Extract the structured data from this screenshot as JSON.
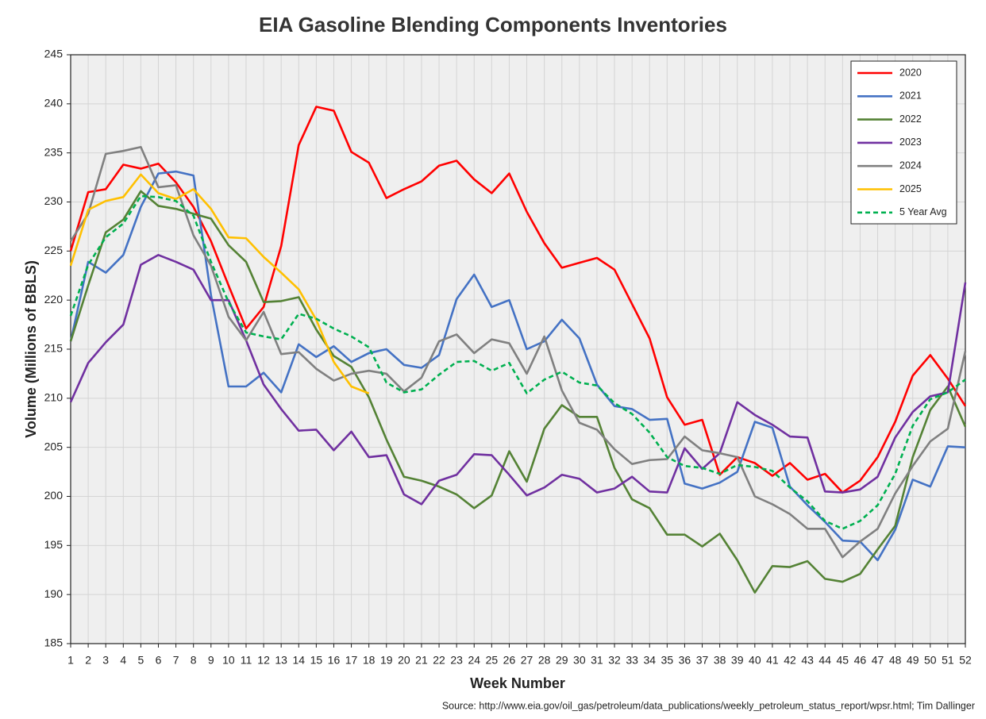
{
  "chart_data": {
    "type": "line",
    "title": "EIA Gasoline Blending Components Inventories",
    "x_label": "Week Number",
    "y_label": "Volume (Millions of BBLS)",
    "source": "Source: http://www.eia.gov/oil_gas/petroleum/data_publications/weekly_petroleum_status_report/wpsr.html; Tim Dallinger",
    "x": [
      1,
      2,
      3,
      4,
      5,
      6,
      7,
      8,
      9,
      10,
      11,
      12,
      13,
      14,
      15,
      16,
      17,
      18,
      19,
      20,
      21,
      22,
      23,
      24,
      25,
      26,
      27,
      28,
      29,
      30,
      31,
      32,
      33,
      34,
      35,
      36,
      37,
      38,
      39,
      40,
      41,
      42,
      43,
      44,
      45,
      46,
      47,
      48,
      49,
      50,
      51,
      52
    ],
    "xlim": [
      1,
      52
    ],
    "xticks": [
      1,
      2,
      3,
      4,
      5,
      6,
      7,
      8,
      9,
      10,
      11,
      12,
      13,
      14,
      15,
      16,
      17,
      18,
      19,
      20,
      21,
      22,
      23,
      24,
      25,
      26,
      27,
      28,
      29,
      30,
      31,
      32,
      33,
      34,
      35,
      36,
      37,
      38,
      39,
      40,
      41,
      42,
      43,
      44,
      45,
      46,
      47,
      48,
      49,
      50,
      51,
      52
    ],
    "ylim": [
      185,
      245
    ],
    "yticks": [
      185,
      190,
      195,
      200,
      205,
      210,
      215,
      220,
      225,
      230,
      235,
      240,
      245
    ],
    "grid": true,
    "legend": "upper right",
    "series": [
      {
        "name": "2020",
        "color": "#ff0000",
        "values": [
          225,
          231,
          231.3,
          233.8,
          233.4,
          233.9,
          232,
          229.5,
          226,
          221.5,
          217.1,
          219.3,
          225.5,
          235.8,
          239.7,
          239.3,
          235.1,
          234,
          230.4,
          231.3,
          232.1,
          233.7,
          234.2,
          232.3,
          230.9,
          232.9,
          229,
          225.8,
          223.3,
          223.8,
          224.3,
          223.1,
          219.6,
          216.1,
          210.1,
          207.3,
          207.8,
          202.2,
          204,
          203.4,
          202.1,
          203.4,
          201.7,
          202.3,
          200.4,
          201.6,
          204,
          207.6,
          212.3,
          214.4,
          212,
          209.2
        ]
      },
      {
        "name": "2021",
        "color": "#4472c4",
        "values": [
          215.8,
          223.9,
          222.8,
          224.6,
          229.5,
          232.9,
          233.1,
          232.7,
          220.5,
          211.2,
          211.2,
          212.6,
          210.6,
          215.5,
          214.2,
          215.3,
          213.7,
          214.6,
          215,
          213.4,
          213.1,
          214.4,
          220.1,
          222.6,
          219.3,
          220,
          215,
          215.8,
          218,
          216.1,
          211.4,
          209.2,
          208.9,
          207.8,
          207.9,
          201.3,
          200.8,
          201.4,
          202.5,
          207.6,
          207,
          201,
          199.1,
          197.4,
          195.5,
          195.4,
          193.5,
          196.6,
          201.7,
          201,
          205.1,
          205
        ]
      },
      {
        "name": "2022",
        "color": "#548235",
        "values": [
          215.8,
          221.5,
          226.9,
          228.2,
          231.1,
          229.6,
          229.3,
          228.8,
          228.3,
          225.6,
          223.9,
          219.8,
          219.9,
          220.3,
          217,
          214.3,
          213.2,
          210.1,
          205.8,
          202,
          201.6,
          201,
          200.2,
          198.8,
          200.1,
          204.6,
          201.5,
          206.9,
          209.3,
          208.1,
          208.1,
          202.9,
          199.7,
          198.8,
          196.1,
          196.1,
          194.9,
          196.2,
          193.5,
          190.2,
          192.9,
          192.8,
          193.4,
          191.6,
          191.3,
          192.1,
          194.6,
          197,
          204,
          208.8,
          211.2,
          207.1
        ]
      },
      {
        "name": "2023",
        "color": "#7030a0",
        "values": [
          209.6,
          213.6,
          215.7,
          217.5,
          223.6,
          224.6,
          223.9,
          223.1,
          220,
          220,
          215.9,
          211.4,
          208.9,
          206.7,
          206.8,
          204.7,
          206.6,
          204,
          204.2,
          200.2,
          199.2,
          201.6,
          202.2,
          204.3,
          204.2,
          202.2,
          200.1,
          200.9,
          202.2,
          201.8,
          200.4,
          200.8,
          202,
          200.5,
          200.4,
          204.9,
          202.8,
          204.4,
          209.6,
          208.3,
          207.3,
          206.1,
          206,
          200.5,
          200.4,
          200.7,
          202,
          206,
          208.6,
          210.2,
          210.6,
          221.8
        ]
      },
      {
        "name": "2024",
        "color": "#808080",
        "values": [
          226,
          228.8,
          234.9,
          235.2,
          235.6,
          231.5,
          231.7,
          226.6,
          223.5,
          218.3,
          215.9,
          218.8,
          214.5,
          214.7,
          213,
          211.8,
          212.5,
          212.8,
          212.5,
          210.7,
          212.1,
          215.8,
          216.5,
          214.6,
          216,
          215.6,
          212.5,
          216.3,
          210.8,
          207.5,
          206.8,
          204.8,
          203.3,
          203.7,
          203.8,
          206.1,
          204.7,
          204.4,
          204,
          200,
          199.2,
          198.2,
          196.7,
          196.7,
          193.8,
          195.4,
          196.7,
          200.3,
          203.1,
          205.6,
          206.9,
          214.8
        ]
      },
      {
        "name": "2025",
        "color": "#ffc000",
        "values": [
          223.5,
          229.2,
          230.1,
          230.5,
          232.8,
          230.9,
          230.3,
          231.3,
          229.3,
          226.4,
          226.3,
          224.4,
          222.8,
          221.1,
          218,
          213.7,
          211.2,
          210.5,
          null,
          null,
          null,
          null,
          null,
          null,
          null,
          null,
          null,
          null,
          null,
          null,
          null,
          null,
          null,
          null,
          null,
          null,
          null,
          null,
          null,
          null,
          null,
          null,
          null,
          null,
          null,
          null,
          null,
          null,
          null,
          null,
          null,
          null
        ]
      },
      {
        "name": "5 Year Avg",
        "color": "#00b050",
        "style": "dashed",
        "values": [
          218.4,
          223.6,
          226.4,
          227.8,
          230.6,
          230.5,
          230.1,
          228.6,
          223.9,
          219.8,
          216.7,
          216.3,
          216,
          218.6,
          218.1,
          217.1,
          216.3,
          215.2,
          211.6,
          210.6,
          210.9,
          212.4,
          213.7,
          213.8,
          212.8,
          213.6,
          210.5,
          211.9,
          212.7,
          211.6,
          211.3,
          209.5,
          208.4,
          206.5,
          204,
          203.1,
          202.9,
          202.3,
          203.2,
          203,
          202.6,
          200.9,
          199.5,
          197.5,
          196.7,
          197.5,
          199.1,
          202.3,
          207.2,
          209.9,
          210.6,
          211.9
        ]
      }
    ]
  }
}
